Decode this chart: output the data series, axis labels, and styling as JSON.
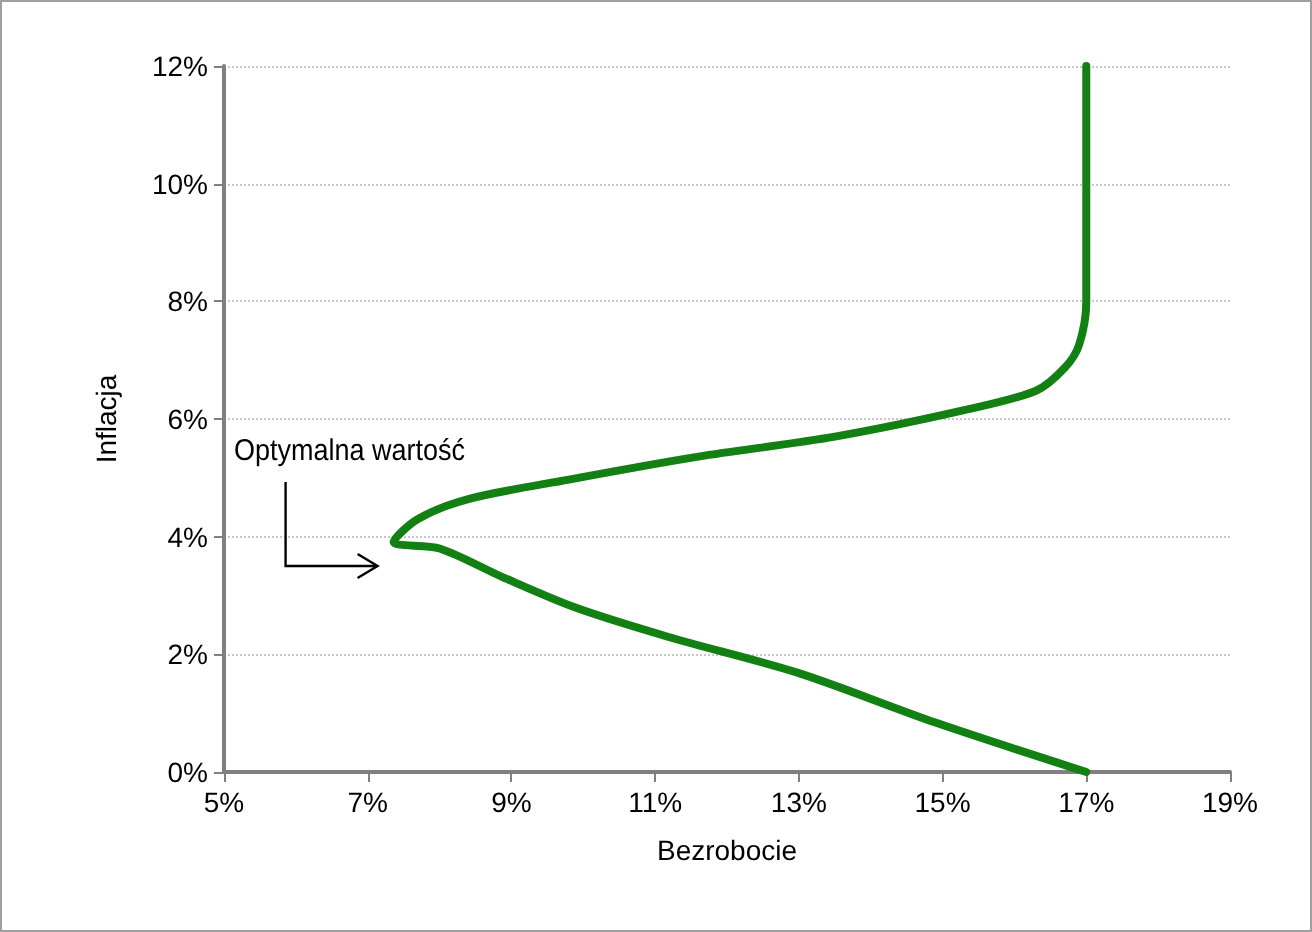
{
  "chart_data": {
    "type": "line",
    "xlabel": "Bezrobocie",
    "ylabel": "Inflacja",
    "x": [
      17.0,
      14.9,
      13.0,
      11.2,
      9.9,
      8.9,
      8.0,
      7.36,
      7.7,
      8.4,
      9.8,
      11.6,
      13.5,
      15.3,
      16.3,
      16.7,
      16.9,
      17.0,
      17.0
    ],
    "series": [
      {
        "color": "#138013",
        "values": [
          0,
          0.84,
          1.68,
          2.29,
          2.79,
          3.3,
          3.8,
          3.91,
          4.3,
          4.64,
          4.97,
          5.36,
          5.7,
          6.15,
          6.48,
          6.87,
          7.26,
          8,
          12
        ]
      }
    ],
    "xlim": [
      5,
      19
    ],
    "ylim": [
      0,
      12
    ],
    "xticks": [
      {
        "value": 5,
        "label": "5%"
      },
      {
        "value": 7,
        "label": "7%"
      },
      {
        "value": 9,
        "label": "9%"
      },
      {
        "value": 11,
        "label": "11%"
      },
      {
        "value": 13,
        "label": "13%"
      },
      {
        "value": 15,
        "label": "15%"
      },
      {
        "value": 17,
        "label": "17%"
      },
      {
        "value": 19,
        "label": "19%"
      }
    ],
    "yticks": [
      {
        "value": 0,
        "label": "0%"
      },
      {
        "value": 2,
        "label": "2%"
      },
      {
        "value": 4,
        "label": "4%"
      },
      {
        "value": 6,
        "label": "6%"
      },
      {
        "value": 8,
        "label": "8%"
      },
      {
        "value": 10,
        "label": "10%"
      },
      {
        "value": 12,
        "label": "12%"
      }
    ],
    "grid": "y",
    "marker": "none",
    "line_style": "solid",
    "annotations": [
      {
        "text": "Optymalna wartość",
        "x": 7.36,
        "y": 3.91
      }
    ]
  }
}
